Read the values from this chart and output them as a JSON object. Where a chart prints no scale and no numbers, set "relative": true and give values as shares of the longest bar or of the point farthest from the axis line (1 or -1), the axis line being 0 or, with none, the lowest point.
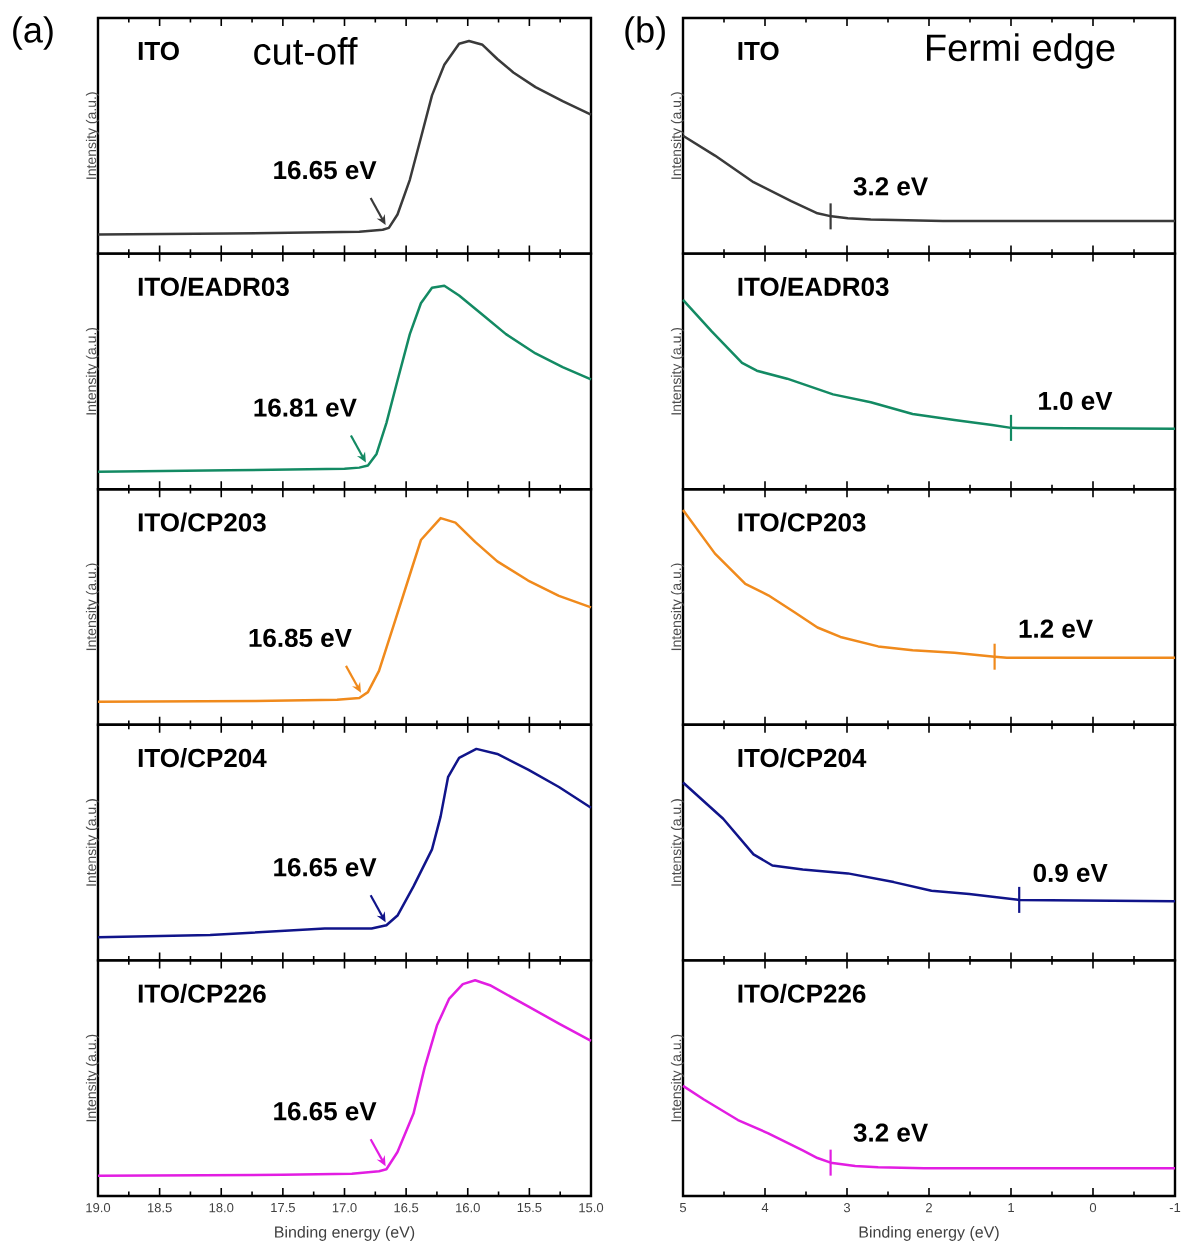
{
  "chart_data": [
    {
      "type": "line",
      "title": "ITO",
      "subtitle": "cut-off",
      "ylabel": "Intensity (a.u.)",
      "relative": true,
      "tick_labels": false,
      "xlim": [
        19,
        15
      ],
      "xticks": [
        19,
        {
          "value": 18.75,
          "label": null
        },
        18.5,
        {
          "value": 18.25,
          "label": null
        },
        18,
        {
          "value": 17.75,
          "label": null
        },
        17.5,
        {
          "value": 17.25,
          "label": null
        },
        17,
        {
          "value": 16.75,
          "label": null
        },
        16.5,
        {
          "value": 16.25,
          "label": null
        },
        16,
        {
          "value": 15.75,
          "label": null
        },
        15.5,
        {
          "value": 15.25,
          "label": null
        },
        15
      ],
      "annotations": [
        "(a)",
        {
          "text": "16.65 eV",
          "x": 16.65,
          "y": 0.12
        }
      ],
      "series": [
        {
          "color": "#3a3a3a",
          "x": [
            19.0,
            17.94,
            16.88,
            16.69,
            16.64,
            16.57,
            16.47,
            16.38,
            16.29,
            16.19,
            16.07,
            15.99,
            15.88,
            15.76,
            15.63,
            15.45,
            15.23,
            15.0
          ],
          "values": [
            0.09,
            0.094,
            0.103,
            0.112,
            0.121,
            0.184,
            0.347,
            0.545,
            0.744,
            0.888,
            0.987,
            1,
            0.982,
            0.915,
            0.852,
            0.783,
            0.717,
            0.653
          ]
        }
      ]
    },
    {
      "type": "line",
      "title": "ITO",
      "subtitle": "Fermi edge",
      "ylabel": "Intensity (a.u.)",
      "relative": true,
      "tick_labels": false,
      "xlim": [
        5,
        -1
      ],
      "xticks": [
        5,
        {
          "value": 4.5,
          "label": null
        },
        4,
        {
          "value": 3.5,
          "label": null
        },
        3,
        {
          "value": 2.5,
          "label": null
        },
        2,
        {
          "value": 1.5,
          "label": null
        },
        1,
        {
          "value": 0.5,
          "label": null
        },
        0,
        {
          "value": -0.5,
          "label": null
        },
        -1
      ],
      "annotations": [
        "(b)",
        {
          "text": "3.2 eV",
          "x": 3.2,
          "y": 0.316
        }
      ],
      "series": [
        {
          "color": "#3a3a3a",
          "x": [
            5,
            4.61,
            4.14,
            3.68,
            3.36,
            3.19,
            2.99,
            2.71,
            1.83,
            -1
          ],
          "values": [
            1,
            0.832,
            0.606,
            0.445,
            0.342,
            0.316,
            0.3,
            0.29,
            0.277,
            0.277
          ]
        }
      ]
    },
    {
      "type": "line",
      "title": "ITO/EADR03",
      "ylabel": "Intensity (a.u.)",
      "relative": true,
      "tick_labels": false,
      "xlim": [
        19,
        15
      ],
      "xticks": [
        19,
        {
          "value": 18.75,
          "label": null
        },
        18.5,
        {
          "value": 18.25,
          "label": null
        },
        18,
        {
          "value": 17.75,
          "label": null
        },
        17.5,
        {
          "value": 17.25,
          "label": null
        },
        17,
        {
          "value": 16.75,
          "label": null
        },
        16.5,
        {
          "value": 16.25,
          "label": null
        },
        16,
        {
          "value": 15.75,
          "label": null
        },
        15.5,
        {
          "value": 15.25,
          "label": null
        },
        15
      ],
      "annotations": [
        {
          "text": "16.81 eV",
          "x": 16.81,
          "y": 0.116
        }
      ],
      "series": [
        {
          "color": "#138a63",
          "x": [
            19.0,
            17.94,
            17.0,
            16.88,
            16.81,
            16.74,
            16.66,
            16.57,
            16.47,
            16.38,
            16.29,
            16.19,
            16.07,
            15.88,
            15.69,
            15.45,
            15.23,
            15.0
          ],
          "values": [
            0.086,
            0.093,
            0.1,
            0.106,
            0.116,
            0.173,
            0.325,
            0.534,
            0.762,
            0.914,
            0.99,
            1,
            0.952,
            0.857,
            0.762,
            0.667,
            0.6,
            0.54
          ]
        }
      ]
    },
    {
      "type": "line",
      "title": "ITO/EADR03",
      "ylabel": "Intensity (a.u.)",
      "relative": true,
      "tick_labels": false,
      "xlim": [
        5,
        -1
      ],
      "xticks": [
        5,
        {
          "value": 4.5,
          "label": null
        },
        4,
        {
          "value": 3.5,
          "label": null
        },
        3,
        {
          "value": 2.5,
          "label": null
        },
        2,
        {
          "value": 1.5,
          "label": null
        },
        1,
        {
          "value": 0.5,
          "label": null
        },
        0,
        {
          "value": -0.5,
          "label": null
        },
        -1
      ],
      "annotations": [
        {
          "text": "1.0 eV",
          "x": 1.0,
          "y": 0.324
        }
      ],
      "series": [
        {
          "color": "#138a63",
          "x": [
            5,
            4.65,
            4.28,
            4.1,
            3.73,
            3.17,
            2.71,
            2.2,
            1.69,
            1.23,
            1.0,
            -1
          ],
          "values": [
            1,
            0.834,
            0.667,
            0.626,
            0.584,
            0.501,
            0.459,
            0.397,
            0.366,
            0.339,
            0.324,
            0.32
          ]
        }
      ]
    },
    {
      "type": "line",
      "title": "ITO/CP203",
      "ylabel": "Intensity (a.u.)",
      "relative": true,
      "tick_labels": false,
      "xlim": [
        19,
        15
      ],
      "xticks": [
        19,
        {
          "value": 18.75,
          "label": null
        },
        18.5,
        {
          "value": 18.25,
          "label": null
        },
        18,
        {
          "value": 17.75,
          "label": null
        },
        17.5,
        {
          "value": 17.25,
          "label": null
        },
        17,
        {
          "value": 16.75,
          "label": null
        },
        16.5,
        {
          "value": 16.25,
          "label": null
        },
        16,
        {
          "value": 15.75,
          "label": null
        },
        15.5,
        {
          "value": 15.25,
          "label": null
        },
        15
      ],
      "annotations": [
        {
          "text": "16.85 eV",
          "x": 16.85,
          "y": 0.14
        }
      ],
      "series": [
        {
          "color": "#f08a1c",
          "x": [
            19.0,
            17.72,
            17.06,
            16.88,
            16.81,
            16.72,
            16.6,
            16.47,
            16.38,
            16.22,
            16.1,
            15.94,
            15.76,
            15.51,
            15.26,
            15.0
          ],
          "values": [
            0.112,
            0.115,
            0.121,
            0.13,
            0.158,
            0.261,
            0.484,
            0.726,
            0.894,
            1,
            0.978,
            0.885,
            0.791,
            0.698,
            0.624,
            0.568
          ]
        }
      ]
    },
    {
      "type": "line",
      "title": "ITO/CP203",
      "ylabel": "Intensity (a.u.)",
      "relative": true,
      "tick_labels": false,
      "xlim": [
        5,
        -1
      ],
      "xticks": [
        5,
        {
          "value": 4.5,
          "label": null
        },
        4,
        {
          "value": 3.5,
          "label": null
        },
        3,
        {
          "value": 2.5,
          "label": null
        },
        2,
        {
          "value": 1.5,
          "label": null
        },
        1,
        {
          "value": 0.5,
          "label": null
        },
        0,
        {
          "value": -0.5,
          "label": null
        },
        -1
      ],
      "annotations": [
        {
          "text": "1.2 eV",
          "x": 1.2,
          "y": 0.317
        }
      ],
      "series": [
        {
          "color": "#f08a1c",
          "x": [
            5,
            4.61,
            4.24,
            3.96,
            3.64,
            3.36,
            3.08,
            2.62,
            2.2,
            1.69,
            1.2,
            1.05,
            -1
          ],
          "values": [
            1,
            0.797,
            0.656,
            0.603,
            0.524,
            0.453,
            0.409,
            0.365,
            0.347,
            0.335,
            0.317,
            0.312,
            0.312
          ]
        }
      ]
    },
    {
      "type": "line",
      "title": "ITO/CP204",
      "ylabel": "Intensity (a.u.)",
      "relative": true,
      "tick_labels": false,
      "xlim": [
        19,
        15
      ],
      "xticks": [
        19,
        {
          "value": 18.75,
          "label": null
        },
        18.5,
        {
          "value": 18.25,
          "label": null
        },
        18,
        {
          "value": 17.75,
          "label": null
        },
        17.5,
        {
          "value": 17.25,
          "label": null
        },
        17,
        {
          "value": 16.75,
          "label": null
        },
        16.5,
        {
          "value": 16.25,
          "label": null
        },
        16,
        {
          "value": 15.75,
          "label": null
        },
        15.5,
        {
          "value": 15.25,
          "label": null
        },
        15
      ],
      "annotations": [
        {
          "text": "16.65 eV",
          "x": 16.65,
          "y": 0.166
        }
      ],
      "series": [
        {
          "color": "#10148a",
          "x": [
            19.0,
            18.09,
            17.16,
            16.78,
            16.66,
            16.57,
            16.44,
            16.29,
            16.22,
            16.16,
            16.07,
            15.93,
            15.76,
            15.51,
            15.26,
            15.0
          ],
          "values": [
            0.11,
            0.12,
            0.151,
            0.151,
            0.166,
            0.212,
            0.35,
            0.525,
            0.681,
            0.866,
            0.958,
            1,
            0.976,
            0.902,
            0.82,
            0.722
          ]
        }
      ]
    },
    {
      "type": "line",
      "title": "ITO/CP204",
      "ylabel": "Intensity (a.u.)",
      "relative": true,
      "tick_labels": false,
      "xlim": [
        5,
        -1
      ],
      "xticks": [
        5,
        {
          "value": 4.5,
          "label": null
        },
        4,
        {
          "value": 3.5,
          "label": null
        },
        3,
        {
          "value": 2.5,
          "label": null
        },
        2,
        {
          "value": 1.5,
          "label": null
        },
        1,
        {
          "value": 0.5,
          "label": null
        },
        0,
        {
          "value": -0.5,
          "label": null
        },
        -1
      ],
      "annotations": [
        {
          "text": "0.9 eV",
          "x": 0.9,
          "y": 0.34
        }
      ],
      "series": [
        {
          "color": "#10148a",
          "x": [
            5,
            4.51,
            4.14,
            3.91,
            3.54,
            2.99,
            2.43,
            1.97,
            1.51,
            0.9,
            -1
          ],
          "values": [
            1,
            0.796,
            0.596,
            0.533,
            0.511,
            0.489,
            0.44,
            0.391,
            0.373,
            0.34,
            0.333
          ]
        }
      ]
    },
    {
      "type": "line",
      "title": "ITO/CP226",
      "xlabel": "Binding energy (eV)",
      "ylabel": "Intensity (a.u.)",
      "relative": true,
      "tick_labels": "x",
      "xlim": [
        19,
        15
      ],
      "xticks": [
        {
          "value": 19,
          "label": "19.0"
        },
        {
          "value": 18.75,
          "label": null
        },
        {
          "value": 18.5,
          "label": "18.5"
        },
        {
          "value": 18.25,
          "label": null
        },
        {
          "value": 18,
          "label": "18.0"
        },
        {
          "value": 17.75,
          "label": null
        },
        {
          "value": 17.5,
          "label": "17.5"
        },
        {
          "value": 17.25,
          "label": null
        },
        {
          "value": 17,
          "label": "17.0"
        },
        {
          "value": 16.75,
          "label": null
        },
        {
          "value": 16.5,
          "label": "16.5"
        },
        {
          "value": 16.25,
          "label": null
        },
        {
          "value": 16,
          "label": "16.0"
        },
        {
          "value": 15.75,
          "label": null
        },
        {
          "value": 15.5,
          "label": "15.5"
        },
        {
          "value": 15.25,
          "label": null
        },
        {
          "value": 15,
          "label": "15.0"
        }
      ],
      "annotations": [
        {
          "text": "16.65 eV",
          "x": 16.65,
          "y": 0.124
        }
      ],
      "series": [
        {
          "color": "#e21de2",
          "x": [
            19.0,
            17.5,
            16.94,
            16.72,
            16.66,
            16.57,
            16.44,
            16.35,
            16.25,
            16.15,
            16.04,
            15.94,
            15.82,
            15.51,
            15.26,
            15.0
          ],
          "values": [
            0.094,
            0.098,
            0.103,
            0.115,
            0.124,
            0.204,
            0.382,
            0.595,
            0.79,
            0.915,
            0.982,
            1,
            0.977,
            0.879,
            0.799,
            0.719
          ]
        }
      ]
    },
    {
      "type": "line",
      "title": "ITO/CP226",
      "xlabel": "Binding energy (eV)",
      "ylabel": "Intensity (a.u.)",
      "relative": true,
      "tick_labels": "x",
      "xlim": [
        5,
        -1
      ],
      "xticks": [
        5,
        {
          "value": 4.5,
          "label": null
        },
        4,
        {
          "value": 3.5,
          "label": null
        },
        3,
        {
          "value": 2.5,
          "label": null
        },
        2,
        {
          "value": 1.5,
          "label": null
        },
        1,
        {
          "value": 0.5,
          "label": null
        },
        0,
        {
          "value": -0.5,
          "label": null
        },
        -1
      ],
      "annotations": [
        {
          "text": "3.2 eV",
          "x": 3.2,
          "y": 0.303
        }
      ],
      "series": [
        {
          "color": "#e21de2",
          "x": [
            5,
            4.75,
            4.33,
            3.96,
            3.54,
            3.36,
            3.2,
            2.9,
            2.62,
            2.06,
            -1
          ],
          "values": [
            1,
            0.879,
            0.69,
            0.569,
            0.414,
            0.345,
            0.303,
            0.272,
            0.262,
            0.252,
            0.252
          ]
        }
      ]
    }
  ]
}
